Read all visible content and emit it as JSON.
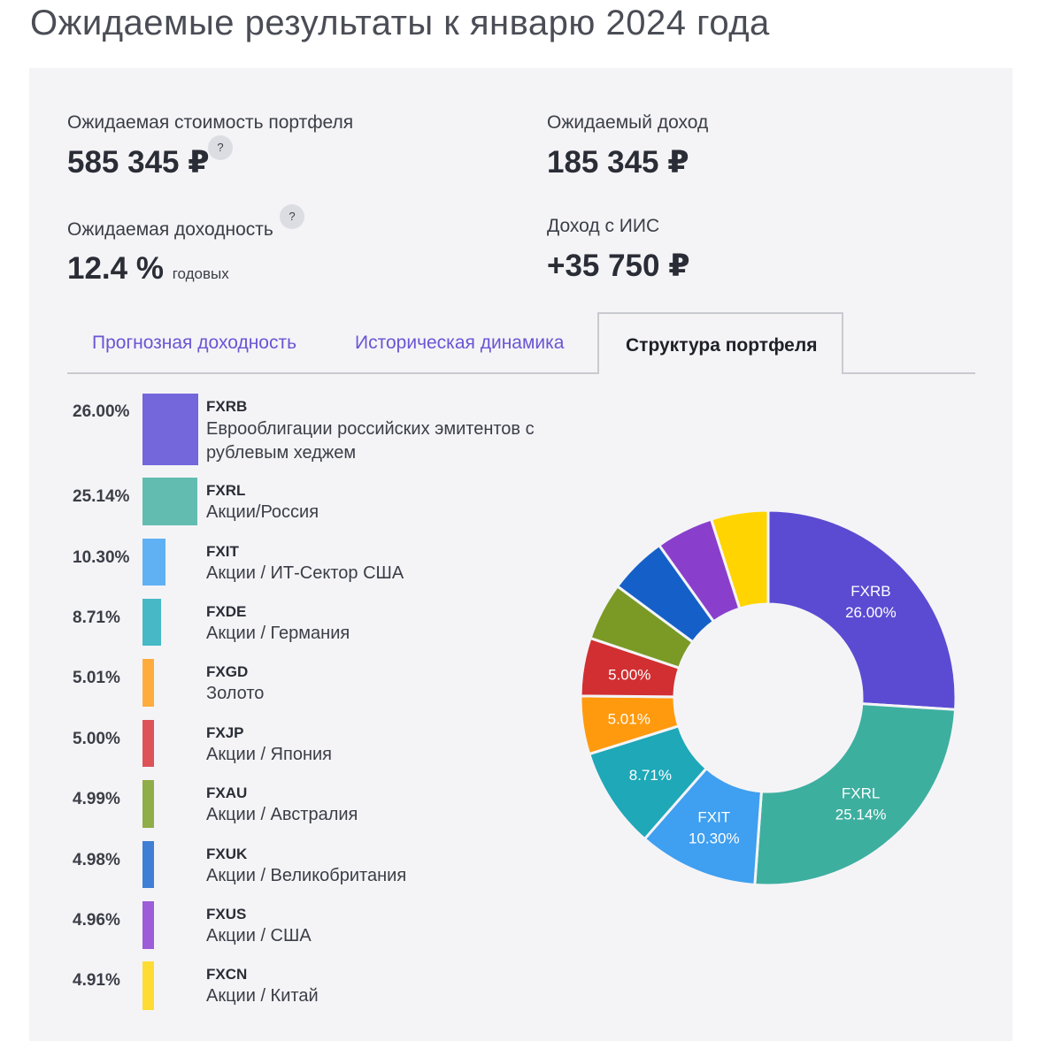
{
  "title": "Ожидаемые результаты к январю 2024 года",
  "metrics": {
    "portfolio_value_label": "Ожидаемая стоимость портфеля",
    "portfolio_value": "585 345 ₽",
    "income_label": "Ожидаемый доход",
    "income": "185 345 ₽",
    "yield_label": "Ожидаемая доходность",
    "yield_value": "12.4 %",
    "yield_unit": "годовых",
    "iis_label": "Доход с ИИС",
    "iis_value": "+35 750 ₽",
    "help_glyph": "?"
  },
  "tabs": [
    {
      "label": "Прогнозная доходность",
      "active": false
    },
    {
      "label": "Историческая динамика",
      "active": false
    },
    {
      "label": "Структура портфеля",
      "active": true
    }
  ],
  "chart_data": {
    "type": "pie",
    "donut": true,
    "categories": [
      "FXRB",
      "FXRL",
      "FXIT",
      "FXDE",
      "FXGD",
      "FXJP",
      "FXAU",
      "FXUK",
      "FXUS",
      "FXCN"
    ],
    "values": [
      26.0,
      25.14,
      10.3,
      8.71,
      5.01,
      5.0,
      4.99,
      4.98,
      4.96,
      4.91
    ],
    "pct_labels": [
      "26.00%",
      "25.14%",
      "10.30%",
      "8.71%",
      "5.01%",
      "5.00%",
      "4.99%",
      "4.98%",
      "4.96%",
      "4.91%"
    ],
    "descriptions": [
      "Еврооблигации российских эмитентов с рублевым хеджем",
      "Акции/Россия",
      "Акции / ИТ-Сектор США",
      "Акции / Германия",
      "Золото",
      "Акции / Япония",
      "Акции / Австралия",
      "Акции / Великобритания",
      "Акции / США",
      "Акции / Китай"
    ],
    "colors": [
      "#5b4bd2",
      "#3daf9f",
      "#3f9ff0",
      "#1ea8b8",
      "#ff9a0f",
      "#d22f32",
      "#7a9a25",
      "#1560c8",
      "#8a3fcc",
      "#ffd400"
    ],
    "legend_colors": [
      "#7466db",
      "#62bcb0",
      "#60b1f4",
      "#47b9c6",
      "#ffac3f",
      "#dd5358",
      "#8fad48",
      "#3f7fd4",
      "#9d5dd8",
      "#ffdc33"
    ],
    "slice_labels": [
      {
        "name": "FXRB",
        "pct": "26.00%"
      },
      {
        "name": "FXRL",
        "pct": "25.14%"
      },
      {
        "name": "FXIT",
        "pct": "10.30%"
      },
      {
        "name": "",
        "pct": "8.71%"
      },
      {
        "name": "",
        "pct": "5.01%"
      },
      {
        "name": "",
        "pct": "5.00%"
      }
    ]
  }
}
